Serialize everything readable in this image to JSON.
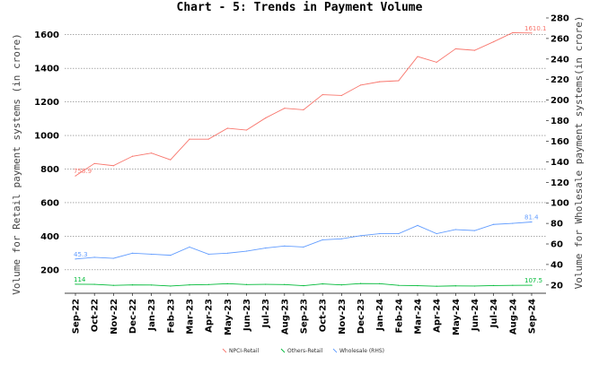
{
  "chart_data": {
    "type": "line",
    "title": "Chart - 5: Trends in Payment Volume",
    "ylabel": "Volume for Retail payment systems (in crore)",
    "y2label": "Volume for Wholesale payment systems(in crore)",
    "ylim": [
      60,
      1700
    ],
    "y2lim": [
      12,
      280
    ],
    "yticks": [
      200,
      400,
      600,
      800,
      1000,
      1200,
      1400,
      1600
    ],
    "y2ticks": [
      20,
      40,
      60,
      80,
      100,
      120,
      140,
      160,
      180,
      200,
      220,
      240,
      260,
      280
    ],
    "grid": true,
    "legend": "bottom",
    "categories": [
      "Sep-22",
      "Oct-22",
      "Nov-22",
      "Dec-22",
      "Jan-23",
      "Feb-23",
      "Mar-23",
      "Apr-23",
      "May-23",
      "Jun-23",
      "Jul-23",
      "Aug-23",
      "Sep-23",
      "Oct-23",
      "Nov-23",
      "Dec-23",
      "Jan-24",
      "Feb-24",
      "Mar-24",
      "Apr-24",
      "May-24",
      "Jun-24",
      "Jul-24",
      "Aug-24",
      "Sep-24"
    ],
    "series": [
      {
        "name": "NPCI-Retail",
        "axis": "left",
        "color": "#f8766d",
        "values": [
          758.9,
          833,
          820,
          876,
          895,
          855,
          978,
          978,
          1043,
          1032,
          1104,
          1162,
          1153,
          1243,
          1238,
          1300,
          1320,
          1326,
          1470,
          1436,
          1516,
          1507,
          1558,
          1612,
          1610.1
        ],
        "labels": {
          "0": "758.9",
          "24": "1610.1"
        }
      },
      {
        "name": "Others-Retail",
        "axis": "left",
        "color": "#00ba38",
        "values": [
          114,
          113,
          107,
          110,
          109,
          103,
          110,
          112,
          117,
          112,
          113,
          112,
          105,
          116,
          110,
          118,
          117,
          107,
          105,
          102,
          104,
          103,
          106,
          107,
          107.5
        ],
        "labels": {
          "0": "114",
          "24": "107.5"
        }
      },
      {
        "name": "Wholesale (RHS)",
        "axis": "right",
        "color": "#619cff",
        "values": [
          45.3,
          47,
          46,
          51,
          50,
          49,
          57,
          50,
          51,
          53,
          56,
          58,
          57,
          64,
          65,
          68,
          70,
          70,
          78,
          70,
          74,
          73,
          79,
          80,
          81.4
        ],
        "labels": {
          "0": "45.3",
          "24": "81.4"
        }
      }
    ]
  }
}
